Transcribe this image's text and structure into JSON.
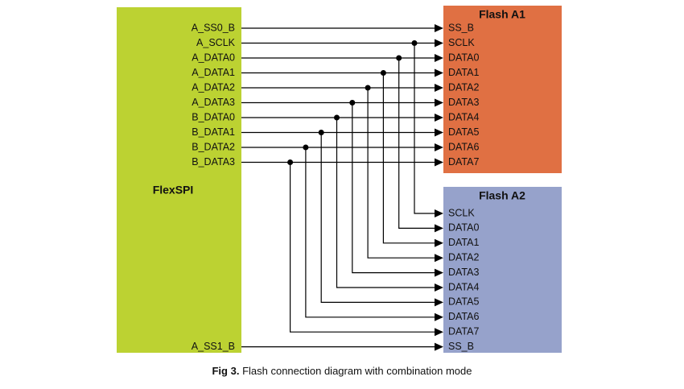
{
  "block": {
    "label": "FlexSPI",
    "signals": [
      "A_SS0_B",
      "A_SCLK",
      "A_DATA0",
      "A_DATA1",
      "A_DATA2",
      "A_DATA3",
      "B_DATA0",
      "B_DATA1",
      "B_DATA2",
      "B_DATA3",
      "A_SS1_B"
    ]
  },
  "flash_a1": {
    "title": "Flash A1",
    "pins": [
      "SS_B",
      "SCLK",
      "DATA0",
      "DATA1",
      "DATA2",
      "DATA3",
      "DATA4",
      "DATA5",
      "DATA6",
      "DATA7"
    ]
  },
  "flash_a2": {
    "title": "Flash A2",
    "pins": [
      "SCLK",
      "DATA0",
      "DATA1",
      "DATA2",
      "DATA3",
      "DATA4",
      "DATA5",
      "DATA6",
      "DATA7",
      "SS_B"
    ]
  },
  "caption": {
    "label": "Fig 3.",
    "text": "Flash connection diagram with combination mode"
  }
}
